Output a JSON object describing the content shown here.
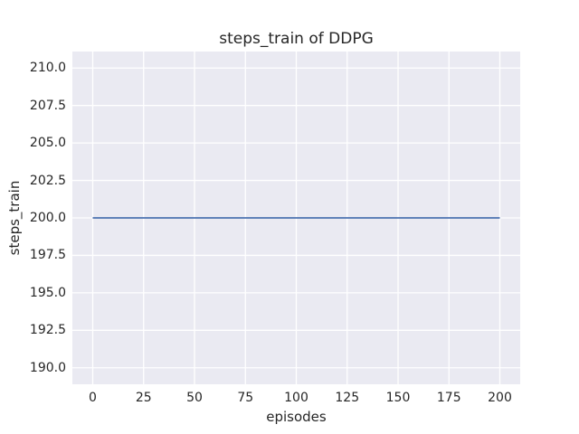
{
  "figure": {
    "background": "#ffffff",
    "text_color": "#262626"
  },
  "chart_data": {
    "type": "line",
    "title": "steps_train of DDPG",
    "xlabel": "episodes",
    "ylabel": "steps_train",
    "series": [
      {
        "name": "steps_train",
        "color": "#4c72b0",
        "points": [
          [
            0,
            200
          ],
          [
            200,
            200
          ]
        ],
        "description": "constant line at steps_train = 200 from episode 0 to 200"
      }
    ],
    "xticks": {
      "values": [
        0,
        25,
        50,
        75,
        100,
        125,
        150,
        175,
        200
      ],
      "labels": [
        "0",
        "25",
        "50",
        "75",
        "100",
        "125",
        "150",
        "175",
        "200"
      ]
    },
    "yticks": {
      "values": [
        190.0,
        192.5,
        195.0,
        197.5,
        200.0,
        202.5,
        205.0,
        207.5,
        210.0
      ],
      "labels": [
        "190.0",
        "192.5",
        "195.0",
        "197.5",
        "200.0",
        "202.5",
        "205.0",
        "207.5",
        "210.0"
      ]
    },
    "xlim": [
      -10,
      210
    ],
    "ylim": [
      188.9,
      211.1
    ],
    "grid": true,
    "legend": false,
    "styles": {
      "plot_bg": "#eaeaf2",
      "grid_color": "#ffffff",
      "grid_width": 1.3,
      "line_width": 1.8
    }
  }
}
